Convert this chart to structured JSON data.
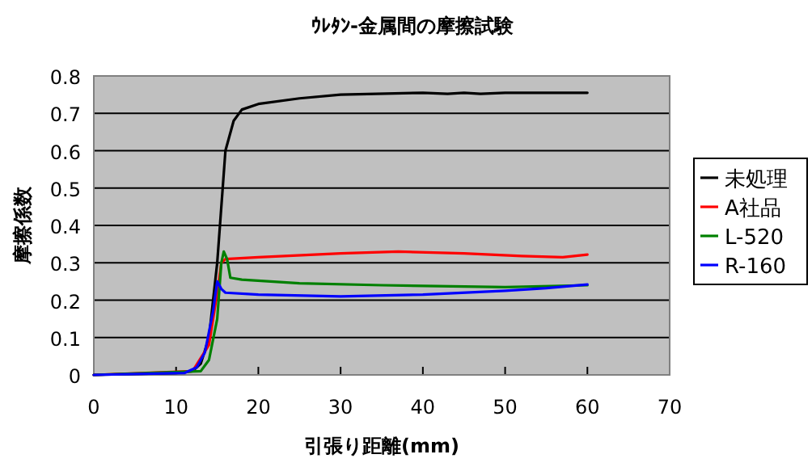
{
  "chart_data": {
    "type": "line",
    "title": "ｳﾚﾀﾝ-金属間の摩擦試験",
    "xlabel": "引張り距離(mm)",
    "ylabel": "摩擦係数",
    "xlim": [
      0,
      70
    ],
    "xticks": [
      0,
      10,
      20,
      30,
      40,
      50,
      60,
      70
    ],
    "ylim": [
      0,
      0.8
    ],
    "yticks": [
      0,
      0.1,
      0.2,
      0.3,
      0.4,
      0.5,
      0.6,
      0.7,
      0.8
    ],
    "grid": "y",
    "legend": "right",
    "marker": "none",
    "line_style": "solid",
    "series": [
      {
        "name": "未処理",
        "color": "#000000",
        "x": [
          0,
          10,
          12,
          13,
          14,
          15,
          15.5,
          16,
          17,
          18,
          20,
          25,
          30,
          40,
          43,
          45,
          47,
          50,
          60
        ],
        "values": [
          0,
          0.005,
          0.01,
          0.03,
          0.1,
          0.3,
          0.45,
          0.6,
          0.68,
          0.71,
          0.725,
          0.74,
          0.75,
          0.755,
          0.752,
          0.755,
          0.752,
          0.755,
          0.755
        ]
      },
      {
        "name": "A社品",
        "color": "#ff0000",
        "x": [
          0,
          12,
          14,
          15,
          15.5,
          16,
          20,
          30,
          37,
          45,
          52,
          57,
          60
        ],
        "values": [
          0,
          0.01,
          0.08,
          0.22,
          0.3,
          0.31,
          0.315,
          0.325,
          0.33,
          0.325,
          0.318,
          0.315,
          0.322
        ]
      },
      {
        "name": "L-520",
        "color": "#008000",
        "x": [
          0,
          13,
          14,
          15,
          15.5,
          15.8,
          16.2,
          16.6,
          18,
          25,
          35,
          50,
          60
        ],
        "values": [
          0,
          0.01,
          0.04,
          0.15,
          0.3,
          0.33,
          0.31,
          0.26,
          0.255,
          0.245,
          0.24,
          0.235,
          0.24
        ]
      },
      {
        "name": "R-160",
        "color": "#0000ff",
        "x": [
          0,
          11,
          12.5,
          13.5,
          14.5,
          15,
          15.5,
          16,
          20,
          30,
          40,
          50,
          55,
          60
        ],
        "values": [
          0,
          0.005,
          0.02,
          0.06,
          0.17,
          0.25,
          0.23,
          0.22,
          0.215,
          0.21,
          0.215,
          0.225,
          0.232,
          0.242
        ]
      }
    ]
  }
}
